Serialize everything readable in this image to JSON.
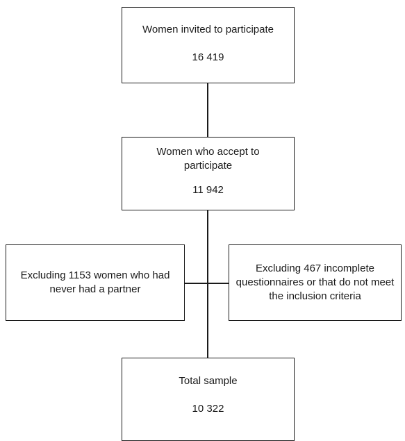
{
  "flowchart": {
    "invited": {
      "label": "Women invited to participate",
      "count": "16 419"
    },
    "accepted": {
      "label": "Women who accept to participate",
      "count": "11 942"
    },
    "exclusion_left": {
      "label": "Excluding 1153 women who had never had a partner"
    },
    "exclusion_right": {
      "label": "Excluding 467 incomplete questionnaires or that do not meet the inclusion criteria"
    },
    "total": {
      "label": "Total sample",
      "count": "10 322"
    }
  },
  "colors": {
    "line": "#1a1a1a",
    "background": "#ffffff"
  }
}
